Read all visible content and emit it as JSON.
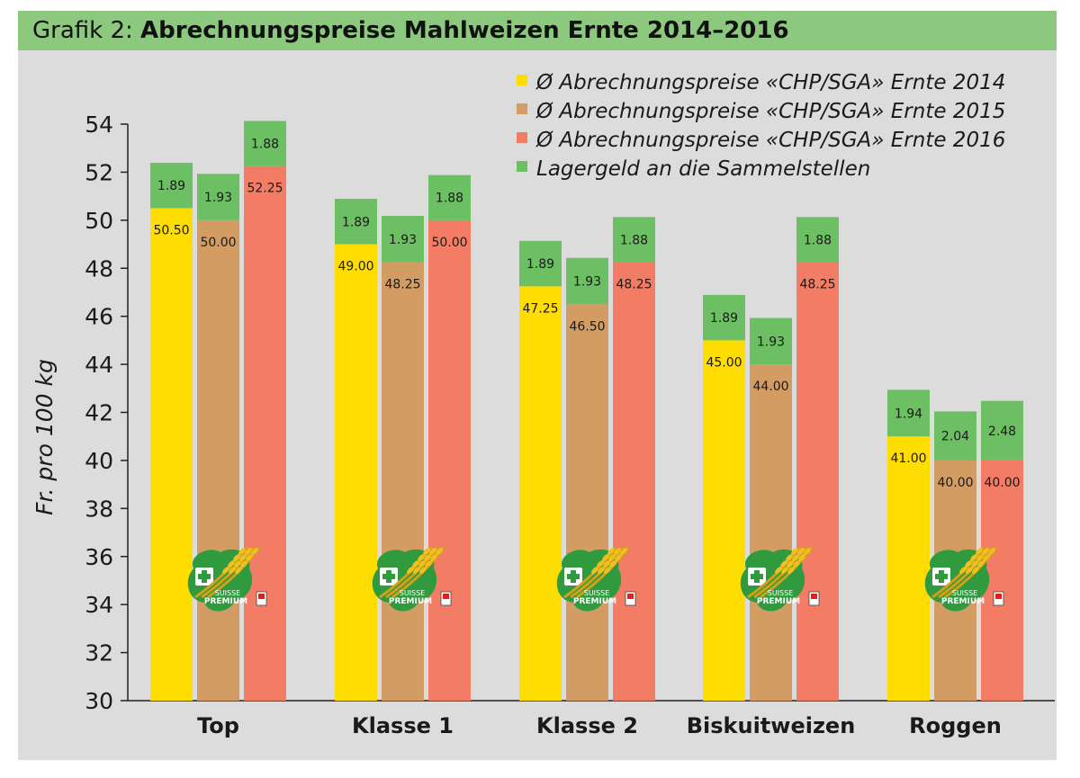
{
  "title": {
    "prefix": "Grafik 2:",
    "main": "Abrechnungspreise Mahlweizen Ernte 2014–2016"
  },
  "colors": {
    "y2014": "#ffdd00",
    "y2015": "#d29c63",
    "y2016": "#f37c65",
    "lager": "#6cbf62",
    "background": "#dcdcdc",
    "title_bar": "#8cc97e"
  },
  "logo": {
    "name": "suisse-premium-logo",
    "text_suisse": "SUISSE",
    "text_premium": "PREMIUM"
  },
  "chart_data": {
    "type": "bar",
    "stacked": true,
    "ylabel": "Fr. pro 100 kg",
    "ylim": [
      30,
      54
    ],
    "yticks": [
      30,
      32,
      34,
      36,
      38,
      40,
      42,
      44,
      46,
      48,
      50,
      52,
      54
    ],
    "grid": false,
    "legend_position": "top-right",
    "categories": [
      "Top",
      "Klasse 1",
      "Klasse 2",
      "Biskuitweizen",
      "Roggen"
    ],
    "series": [
      {
        "name": "Ø Abrechnungspreise «CHP/SGA» Ernte 2014",
        "color": "#ffdd00",
        "price": [
          50.5,
          49.0,
          47.25,
          45.0,
          41.0
        ],
        "lager": [
          1.89,
          1.89,
          1.89,
          1.89,
          1.94
        ],
        "price_labels": [
          "50.50",
          "49.00",
          "47.25",
          "45.00",
          "41.00"
        ],
        "lager_labels": [
          "1.89",
          "1.89",
          "1.89",
          "1.89",
          "1.94"
        ]
      },
      {
        "name": "Ø Abrechnungspreise «CHP/SGA» Ernte 2015",
        "color": "#d29c63",
        "price": [
          50.0,
          48.25,
          46.5,
          44.0,
          40.0
        ],
        "lager": [
          1.93,
          1.93,
          1.93,
          1.93,
          2.04
        ],
        "price_labels": [
          "50.00",
          "48.25",
          "46.50",
          "44.00",
          "40.00"
        ],
        "lager_labels": [
          "1.93",
          "1.93",
          "1.93",
          "1.93",
          "2.04"
        ]
      },
      {
        "name": "Ø Abrechnungspreise «CHP/SGA» Ernte 2016",
        "color": "#f37c65",
        "price": [
          52.25,
          50.0,
          48.25,
          48.25,
          40.0
        ],
        "lager": [
          1.88,
          1.88,
          1.88,
          1.88,
          2.48
        ],
        "price_labels": [
          "52.25",
          "50.00",
          "48.25",
          "48.25",
          "40.00"
        ],
        "lager_labels": [
          "1.88",
          "1.88",
          "1.88",
          "1.88",
          "2.48"
        ]
      }
    ],
    "lager_legend": "Lagergeld an die Sammelstellen"
  }
}
